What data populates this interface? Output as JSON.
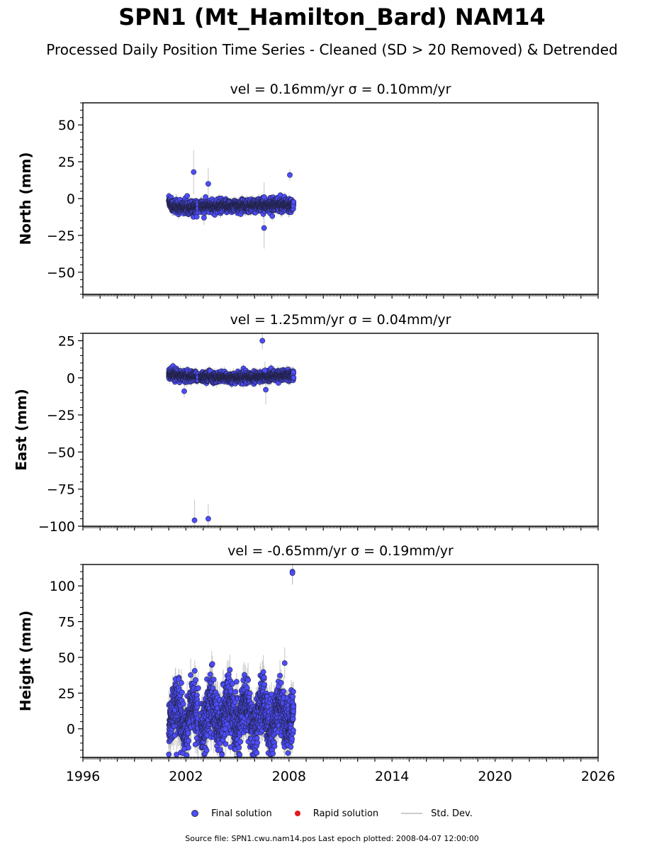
{
  "header": {
    "title": "SPN1 (Mt_Hamilton_Bard) NAM14",
    "subtitle": "Processed Daily Position Time Series - Cleaned (SD > 20 Removed) & Detrended"
  },
  "legend": {
    "final_label": "Final solution",
    "rapid_label": "Rapid solution",
    "std_label": "Std. Dev.",
    "final_color": "#4d4dff",
    "rapid_color": "#e31a1c",
    "std_color": "#cccccc"
  },
  "footer": {
    "text": "Source file: SPN1.cwu.nam14.pos  Last epoch plotted: 2008-04-07 12:00:00"
  },
  "chart_data": [
    {
      "type": "scatter",
      "title": "vel = 0.16mm/yr   σ = 0.10mm/yr",
      "ylabel": "North (mm)",
      "xlim": [
        1996,
        2026
      ],
      "ylim": [
        -65,
        65
      ],
      "yticks": [
        -50,
        -25,
        0,
        25,
        50
      ],
      "xticks": [
        1996,
        2002,
        2008,
        2014,
        2020,
        2026
      ],
      "show_xtick_labels": false,
      "data_span": [
        2001.0,
        2008.27
      ],
      "gaps": [
        [
          2002.72,
          2002.85
        ]
      ],
      "baseline": [
        [
          2001.0,
          -1
        ],
        [
          2001.3,
          -6
        ],
        [
          2005.0,
          -5
        ],
        [
          2008.27,
          -4
        ]
      ],
      "noise": 2.0,
      "err_typical": 3,
      "outliers": [
        {
          "x": 2002.45,
          "y": 18,
          "err": 15
        },
        {
          "x": 2003.3,
          "y": 10,
          "err": 11
        },
        {
          "x": 2003.05,
          "y": -13,
          "err": 5
        },
        {
          "x": 2006.55,
          "y": -20,
          "err": 14
        },
        {
          "x": 2006.55,
          "y": 1,
          "err": 10
        },
        {
          "x": 2008.05,
          "y": 16,
          "err": 4
        }
      ],
      "series": [
        {
          "name": "Final solution",
          "color": "#4d4dff"
        },
        {
          "name": "Std. Dev.",
          "color": "#cccccc"
        }
      ]
    },
    {
      "type": "scatter",
      "title": "vel = 1.25mm/yr   σ = 0.04mm/yr",
      "ylabel": "East (mm)",
      "xlim": [
        1996,
        2026
      ],
      "ylim": [
        -100,
        30
      ],
      "yticks": [
        -100,
        -75,
        -50,
        -25,
        0,
        25
      ],
      "xticks": [
        1996,
        2002,
        2008,
        2014,
        2020,
        2026
      ],
      "show_xtick_labels": false,
      "data_span": [
        2001.0,
        2008.27
      ],
      "gaps": [
        [
          2002.72,
          2002.85
        ]
      ],
      "baseline": [
        [
          2001.0,
          3
        ],
        [
          2002.0,
          1
        ],
        [
          2005.0,
          0
        ],
        [
          2008.27,
          2
        ]
      ],
      "noise": 1.6,
      "err_typical": 3,
      "outliers": [
        {
          "x": 2002.5,
          "y": -96,
          "err": 14
        },
        {
          "x": 2003.3,
          "y": -95,
          "err": 10
        },
        {
          "x": 2001.9,
          "y": -9,
          "err": 4
        },
        {
          "x": 2006.45,
          "y": 25,
          "err": 6
        },
        {
          "x": 2006.65,
          "y": -8,
          "err": 10
        },
        {
          "x": 2006.6,
          "y": 5,
          "err": 6
        }
      ],
      "series": [
        {
          "name": "Final solution",
          "color": "#4d4dff"
        },
        {
          "name": "Std. Dev.",
          "color": "#cccccc"
        }
      ]
    },
    {
      "type": "scatter",
      "title": "vel = -0.65mm/yr   σ = 0.19mm/yr",
      "ylabel": "Height (mm)",
      "xlim": [
        1996,
        2026
      ],
      "ylim": [
        -20,
        115
      ],
      "yticks": [
        0,
        25,
        50,
        75,
        100
      ],
      "xticks": [
        1996,
        2002,
        2008,
        2014,
        2020,
        2026
      ],
      "show_xtick_labels": true,
      "data_span": [
        2001.0,
        2008.27
      ],
      "gaps": [
        [
          2002.72,
          2002.85
        ]
      ],
      "baseline": [
        [
          2001.0,
          9
        ],
        [
          2008.27,
          9
        ]
      ],
      "noise": 9.0,
      "err_typical": 10,
      "outliers": [
        {
          "x": 2008.2,
          "y": 110,
          "err": 9
        },
        {
          "x": 2008.2,
          "y": 109,
          "err": 8
        },
        {
          "x": 2007.75,
          "y": 46,
          "err": 11
        },
        {
          "x": 2006.55,
          "y": 36,
          "err": 6
        },
        {
          "x": 2004.95,
          "y": 33,
          "err": 6
        },
        {
          "x": 2008.25,
          "y": 26,
          "err": 7
        },
        {
          "x": 2001.9,
          "y": -14,
          "err": 9
        },
        {
          "x": 2001.45,
          "y": -18,
          "err": 10
        },
        {
          "x": 2002.55,
          "y": -11,
          "err": 6
        }
      ],
      "series": [
        {
          "name": "Final solution",
          "color": "#4d4dff"
        },
        {
          "name": "Std. Dev.",
          "color": "#cccccc"
        }
      ]
    }
  ]
}
